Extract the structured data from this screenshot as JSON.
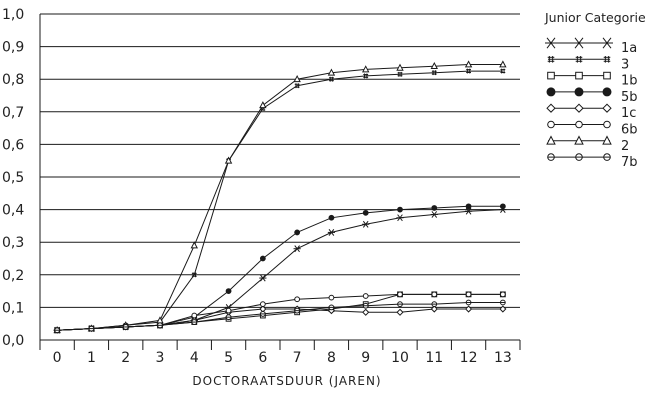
{
  "chart_data": {
    "type": "line",
    "title": "",
    "xlabel": "DOCTORAATSDUUR (JAREN)",
    "ylabel": "",
    "x": [
      0,
      1,
      2,
      3,
      4,
      5,
      6,
      7,
      8,
      9,
      10,
      11,
      12,
      13
    ],
    "x_tick_labels": [
      "0",
      "1",
      "2",
      "3",
      "4",
      "5",
      "6",
      "7",
      "8",
      "9",
      "10",
      "11",
      "12",
      "13"
    ],
    "y_tick_labels": [
      "0,0",
      "0,1",
      "0,2",
      "0,3",
      "0,4",
      "0,5",
      "0,6",
      "0,7",
      "0,8",
      "0,9",
      "1,0"
    ],
    "xlim": [
      -0.5,
      13.5
    ],
    "ylim": [
      0,
      1.0
    ],
    "grid": "horizontal",
    "legend_title": "Junior Categorie",
    "legend_position": "right",
    "series": [
      {
        "name": "1a",
        "marker": "asterisk",
        "values": [
          0.03,
          0.035,
          0.04,
          0.045,
          0.06,
          0.1,
          0.19,
          0.28,
          0.33,
          0.355,
          0.375,
          0.385,
          0.395,
          0.4
        ]
      },
      {
        "name": "3",
        "marker": "hash",
        "values": [
          0.03,
          0.035,
          0.045,
          0.055,
          0.2,
          0.55,
          0.71,
          0.78,
          0.8,
          0.81,
          0.815,
          0.82,
          0.825,
          0.825
        ]
      },
      {
        "name": "1b",
        "marker": "square",
        "values": [
          0.03,
          0.035,
          0.04,
          0.045,
          0.055,
          0.065,
          0.075,
          0.085,
          0.095,
          0.11,
          0.14,
          0.14,
          0.14,
          0.14
        ]
      },
      {
        "name": "5b",
        "marker": "filled-circle",
        "values": [
          0.03,
          0.035,
          0.04,
          0.045,
          0.07,
          0.15,
          0.25,
          0.33,
          0.375,
          0.39,
          0.4,
          0.405,
          0.41,
          0.41
        ]
      },
      {
        "name": "1c",
        "marker": "diamond",
        "values": [
          0.03,
          0.035,
          0.04,
          0.045,
          0.06,
          0.085,
          0.095,
          0.095,
          0.09,
          0.085,
          0.085,
          0.095,
          0.095,
          0.095
        ]
      },
      {
        "name": "6b",
        "marker": "circle",
        "values": [
          0.03,
          0.035,
          0.04,
          0.045,
          0.075,
          0.09,
          0.11,
          0.125,
          0.13,
          0.135,
          0.14,
          0.14,
          0.14,
          0.14
        ]
      },
      {
        "name": "2",
        "marker": "triangle",
        "values": [
          0.03,
          0.035,
          0.045,
          0.06,
          0.29,
          0.55,
          0.72,
          0.8,
          0.82,
          0.83,
          0.835,
          0.84,
          0.845,
          0.845
        ]
      },
      {
        "name": "7b",
        "marker": "circle-bar",
        "values": [
          0.03,
          0.035,
          0.04,
          0.045,
          0.055,
          0.07,
          0.08,
          0.09,
          0.1,
          0.105,
          0.11,
          0.11,
          0.115,
          0.115
        ]
      }
    ]
  }
}
